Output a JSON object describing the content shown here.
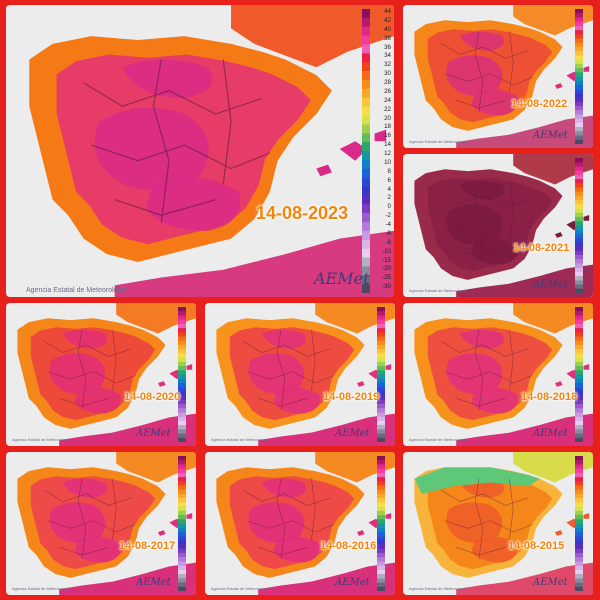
{
  "organization": "Agencia Estatal de Meteorología",
  "logo_text": "AEMet",
  "panels": [
    {
      "date": "14-08-2023"
    },
    {
      "date": "14-08-2022"
    },
    {
      "date": "14-08-2021"
    },
    {
      "date": "14-08-2020"
    },
    {
      "date": "14-08-2019"
    },
    {
      "date": "14-08-2018"
    },
    {
      "date": "14-08-2017"
    },
    {
      "date": "14-08-2016"
    },
    {
      "date": "14-08-2015"
    }
  ],
  "colorbar": {
    "ticks": [
      "44",
      "42",
      "40",
      "38",
      "36",
      "34",
      "32",
      "30",
      "28",
      "26",
      "24",
      "22",
      "20",
      "18",
      "16",
      "14",
      "12",
      "10",
      "8",
      "6",
      "4",
      "2",
      "0",
      "-2",
      "-4",
      "-6",
      "-8",
      "-10",
      "-15",
      "-20",
      "-25",
      "-30"
    ],
    "colors": [
      "#8a0f5a",
      "#b4186a",
      "#e0288a",
      "#f43ca0",
      "#f060b0",
      "#e8204a",
      "#f0401c",
      "#f56a14",
      "#f88c18",
      "#f9a82c",
      "#fbc43c",
      "#f8dc48",
      "#d6e24c",
      "#9ed04e",
      "#62bc5a",
      "#2aa86a",
      "#1696a0",
      "#1280c8",
      "#1a62d8",
      "#2a48d4",
      "#3a34c8",
      "#5a2cbc",
      "#7a3cc0",
      "#9a5ad0",
      "#b47ad8",
      "#c89ae0",
      "#d8b4e8",
      "#e6cef0",
      "#b0b0c0",
      "#8c8ca0",
      "#6a6a80",
      "#4a4a60"
    ]
  }
}
